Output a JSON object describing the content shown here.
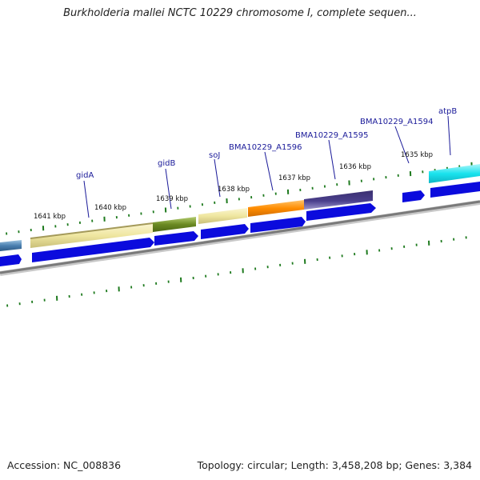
{
  "title": "Burkholderia mallei NCTC 10229 chromosome I, complete sequen...",
  "footer": {
    "accession": "Accession: NC_008836",
    "topology": "Topology: circular; Length: 3,458,208 bp; Genes: 3,384"
  },
  "colors": {
    "backbone": "#8a8a8a",
    "tick": "#1e7a1e",
    "gene_arrow": "#0b0bdd",
    "label": "#1a1a99"
  },
  "kbp_labels": [
    {
      "id": "kbp-1641",
      "text": "1641 kbp"
    },
    {
      "id": "kbp-1640",
      "text": "1640 kbp"
    },
    {
      "id": "kbp-1639",
      "text": "1639 kbp"
    },
    {
      "id": "kbp-1638",
      "text": "1638 kbp"
    },
    {
      "id": "kbp-1637",
      "text": "1637 kbp"
    },
    {
      "id": "kbp-1636",
      "text": "1636 kbp"
    },
    {
      "id": "kbp-1635",
      "text": "1635 kbp"
    }
  ],
  "gene_labels": [
    {
      "id": "gene-gidA",
      "text": "gidA"
    },
    {
      "id": "gene-gidB",
      "text": "gidB"
    },
    {
      "id": "gene-soj",
      "text": "soJ"
    },
    {
      "id": "gene-BMA10229_A1596",
      "text": "BMA10229_A1596"
    },
    {
      "id": "gene-BMA10229_A1595",
      "text": "BMA10229_A1595"
    },
    {
      "id": "gene-BMA10229_A1594",
      "text": "BMA10229_A1594"
    },
    {
      "id": "gene-atpB",
      "text": "atpB"
    }
  ],
  "features": [
    {
      "id": "feat-left-edge",
      "color": "#4a7fb0"
    },
    {
      "id": "feat-gidA",
      "color": "#efe6a0"
    },
    {
      "id": "feat-gidB",
      "color": "#6b8a22"
    },
    {
      "id": "feat-soj",
      "color": "#efe6a0"
    },
    {
      "id": "feat-BMA10229_A1596",
      "color": "#ff8c00"
    },
    {
      "id": "feat-BMA10229_A1595",
      "color": "#4a3f8c"
    },
    {
      "id": "feat-atpB",
      "color": "#19e3ee"
    }
  ]
}
